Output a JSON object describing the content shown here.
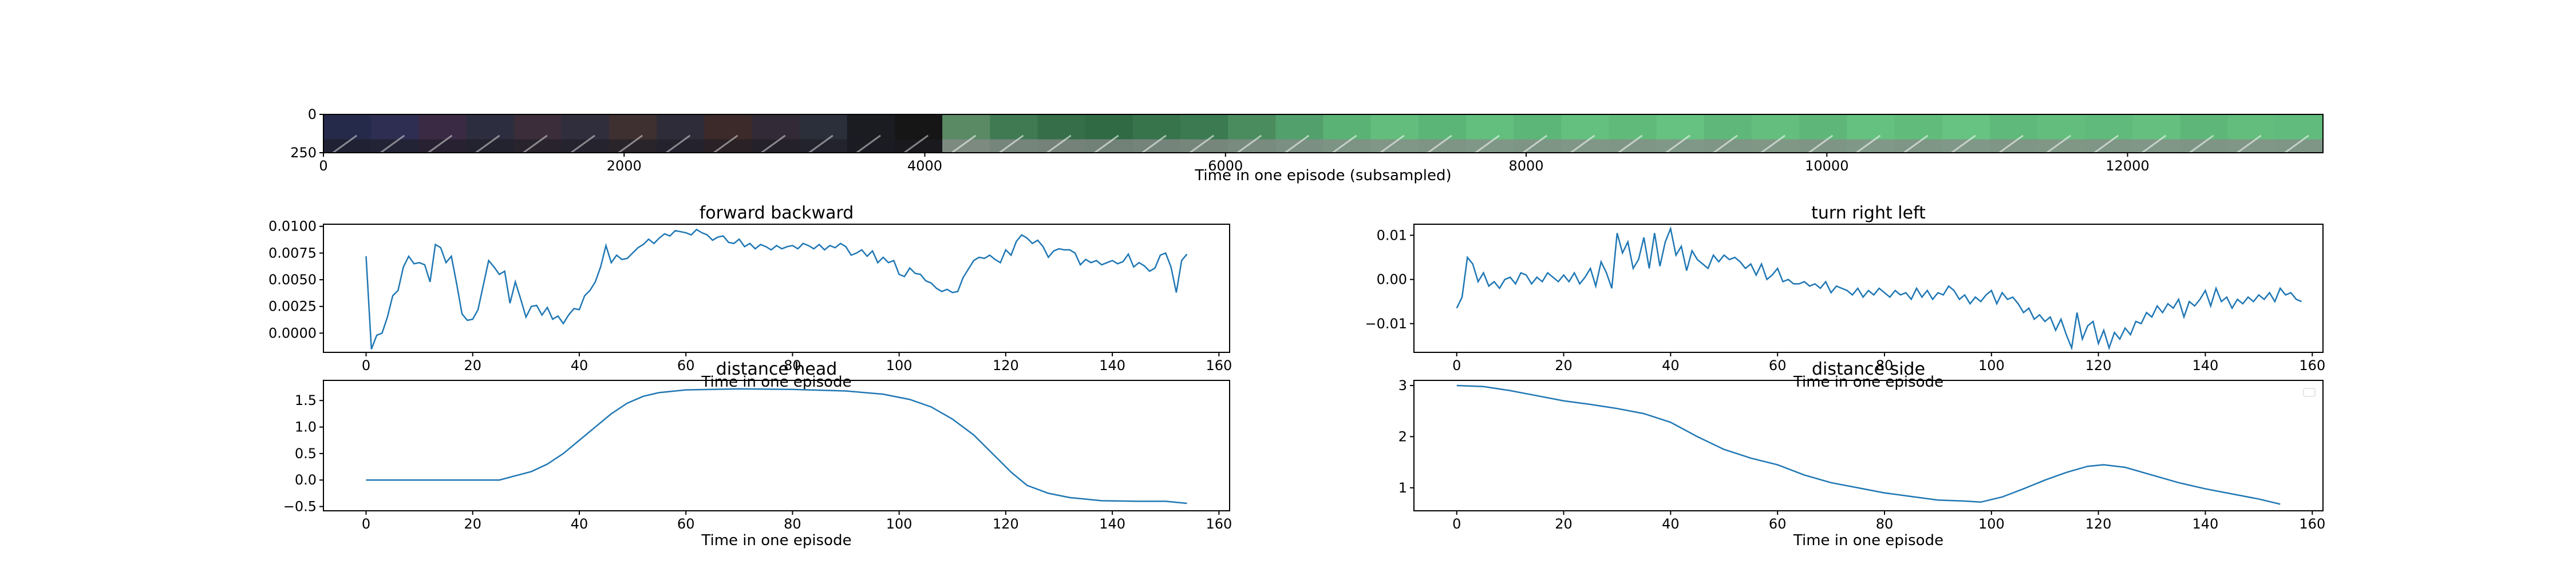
{
  "chart_data": [
    {
      "type": "image_strip",
      "xlabel": "Time in one episode (subsampled)",
      "xlim": [
        0,
        13300
      ],
      "xticks": [
        0,
        2000,
        4000,
        6000,
        8000,
        10000,
        12000
      ],
      "ylim": [
        0,
        250
      ],
      "yticks": [
        0,
        250
      ],
      "frame_colors": [
        "#262a4a",
        "#2e2d52",
        "#3a2a44",
        "#2c2d3e",
        "#3b2d3a",
        "#302e3d",
        "#3e3030",
        "#2f2c3a",
        "#3c2a2a",
        "#322a36",
        "#2b2f3a",
        "#1a1c22",
        "#161616",
        "#5a8a64",
        "#3f7a53",
        "#356e49",
        "#2f6a44",
        "#37744c",
        "#3c7b52",
        "#4a8c5e",
        "#52a06b",
        "#5ab274",
        "#63bd7c",
        "#5bb576",
        "#62bf7e",
        "#5cb677",
        "#64c07f",
        "#60bb7b",
        "#66c281",
        "#5fb87a",
        "#64bf7e",
        "#5eb779",
        "#65c180",
        "#61bc7c",
        "#66c382",
        "#5fb97a",
        "#63be7e",
        "#60ba7b",
        "#65c080",
        "#5eb779",
        "#63bd7d",
        "#61bb7c"
      ]
    },
    {
      "type": "line",
      "title": "forward backward",
      "xlabel": "Time in one episode",
      "ylabel": "",
      "xlim": [
        -8,
        162
      ],
      "ylim": [
        -0.0018,
        0.0102
      ],
      "xticks": [
        0,
        20,
        40,
        60,
        80,
        100,
        120,
        140,
        160
      ],
      "yticks": [
        0.0,
        0.0025,
        0.005,
        0.0075,
        0.01
      ],
      "ytick_labels": [
        "0.0000",
        "0.0025",
        "0.0050",
        "0.0075",
        "0.0100"
      ],
      "color": "#1f77b4",
      "y": [
        0.0072,
        -0.0015,
        -0.0002,
        0.0,
        0.0015,
        0.0035,
        0.004,
        0.0062,
        0.0072,
        0.0065,
        0.0066,
        0.0064,
        0.0048,
        0.0083,
        0.008,
        0.0066,
        0.0072,
        0.0046,
        0.0018,
        0.0012,
        0.0013,
        0.0022,
        0.0045,
        0.0068,
        0.0062,
        0.0055,
        0.0058,
        0.0028,
        0.0048,
        0.0032,
        0.0015,
        0.0025,
        0.0026,
        0.0017,
        0.0024,
        0.0013,
        0.0016,
        0.0009,
        0.0017,
        0.0023,
        0.0022,
        0.0035,
        0.004,
        0.0048,
        0.0062,
        0.0082,
        0.0066,
        0.0073,
        0.0069,
        0.007,
        0.0075,
        0.008,
        0.0083,
        0.0088,
        0.0084,
        0.0089,
        0.0093,
        0.0091,
        0.0096,
        0.0095,
        0.0094,
        0.0092,
        0.0097,
        0.0094,
        0.0092,
        0.0087,
        0.009,
        0.0091,
        0.0085,
        0.0084,
        0.0088,
        0.0081,
        0.0084,
        0.0079,
        0.0083,
        0.0081,
        0.0078,
        0.0082,
        0.0079,
        0.0081,
        0.0082,
        0.0079,
        0.0084,
        0.0082,
        0.0079,
        0.0083,
        0.0078,
        0.0082,
        0.008,
        0.0084,
        0.0081,
        0.0073,
        0.0075,
        0.0078,
        0.0072,
        0.0077,
        0.0066,
        0.0071,
        0.0066,
        0.0068,
        0.0055,
        0.0053,
        0.0061,
        0.0056,
        0.0055,
        0.0049,
        0.0047,
        0.0042,
        0.0039,
        0.0041,
        0.0038,
        0.0039,
        0.0052,
        0.006,
        0.0068,
        0.0071,
        0.007,
        0.0073,
        0.0069,
        0.0066,
        0.0078,
        0.0073,
        0.0086,
        0.0092,
        0.0089,
        0.0084,
        0.0087,
        0.0081,
        0.0071,
        0.0077,
        0.0079,
        0.0078,
        0.0078,
        0.0075,
        0.0064,
        0.0069,
        0.0066,
        0.0068,
        0.0064,
        0.0066,
        0.0068,
        0.0065,
        0.0067,
        0.0074,
        0.0062,
        0.0066,
        0.0063,
        0.0058,
        0.0061,
        0.0073,
        0.0075,
        0.0062,
        0.0038,
        0.0068,
        0.0074
      ]
    },
    {
      "type": "line",
      "title": "turn right left",
      "xlabel": "Time in one episode",
      "ylabel": "",
      "xlim": [
        -8,
        162
      ],
      "ylim": [
        -0.0165,
        0.0125
      ],
      "xticks": [
        0,
        20,
        40,
        60,
        80,
        100,
        120,
        140,
        160
      ],
      "yticks": [
        -0.01,
        0.0,
        0.01
      ],
      "ytick_labels": [
        "−0.01",
        "0.00",
        "0.01"
      ],
      "color": "#1f77b4",
      "y": [
        -0.0065,
        -0.004,
        0.005,
        0.0035,
        -0.0005,
        0.0015,
        -0.0015,
        -0.0005,
        -0.002,
        0.0,
        0.0005,
        -0.001,
        0.0015,
        0.001,
        -0.001,
        0.0005,
        -0.0005,
        0.0015,
        0.0005,
        -0.0005,
        0.001,
        -0.0005,
        0.0015,
        -0.001,
        0.0005,
        0.0025,
        -0.0015,
        0.004,
        0.0015,
        -0.002,
        0.0105,
        0.006,
        0.0085,
        0.0025,
        0.0045,
        0.0095,
        0.0025,
        0.0105,
        0.003,
        0.0085,
        0.0115,
        0.0055,
        0.0075,
        0.002,
        0.0065,
        0.0045,
        0.0035,
        0.0025,
        0.0055,
        0.004,
        0.0055,
        0.0045,
        0.005,
        0.004,
        0.0025,
        0.0035,
        0.001,
        0.0035,
        0.0,
        0.001,
        0.0025,
        -0.0005,
        0.0,
        -0.001,
        -0.001,
        -0.0005,
        -0.0015,
        -0.001,
        -0.002,
        -0.0005,
        -0.003,
        -0.0015,
        -0.002,
        -0.0025,
        -0.0035,
        -0.002,
        -0.004,
        -0.0025,
        -0.0035,
        -0.002,
        -0.003,
        -0.004,
        -0.0025,
        -0.0035,
        -0.003,
        -0.0045,
        -0.002,
        -0.004,
        -0.0025,
        -0.0045,
        -0.003,
        -0.0035,
        -0.0015,
        -0.0025,
        -0.0045,
        -0.0035,
        -0.0055,
        -0.004,
        -0.005,
        -0.0035,
        -0.0025,
        -0.0055,
        -0.003,
        -0.0045,
        -0.004,
        -0.0055,
        -0.0075,
        -0.0065,
        -0.009,
        -0.008,
        -0.0095,
        -0.0085,
        -0.0115,
        -0.009,
        -0.0125,
        -0.0155,
        -0.0075,
        -0.0135,
        -0.0105,
        -0.0095,
        -0.0145,
        -0.0115,
        -0.0155,
        -0.012,
        -0.0135,
        -0.011,
        -0.0125,
        -0.0095,
        -0.01,
        -0.0075,
        -0.0085,
        -0.006,
        -0.0075,
        -0.0055,
        -0.0065,
        -0.0045,
        -0.0085,
        -0.005,
        -0.006,
        -0.0045,
        -0.0025,
        -0.006,
        -0.002,
        -0.005,
        -0.004,
        -0.0065,
        -0.0045,
        -0.0055,
        -0.004,
        -0.005,
        -0.0035,
        -0.0045,
        -0.003,
        -0.005,
        -0.002,
        -0.0035,
        -0.003,
        -0.0045,
        -0.005
      ]
    },
    {
      "type": "line",
      "title": "distance head",
      "xlabel": "Time in one episode",
      "ylabel": "",
      "xlim": [
        -8,
        162
      ],
      "ylim": [
        -0.58,
        1.88
      ],
      "xticks": [
        0,
        20,
        40,
        60,
        80,
        100,
        120,
        140,
        160
      ],
      "yticks": [
        -0.5,
        0.0,
        0.5,
        1.0,
        1.5
      ],
      "ytick_labels": [
        "−0.5",
        "0.0",
        "0.5",
        "1.0",
        "1.5"
      ],
      "color": "#1f77b4",
      "points": [
        [
          0,
          0.0
        ],
        [
          25,
          0.0
        ],
        [
          28,
          0.08
        ],
        [
          31,
          0.16
        ],
        [
          34,
          0.3
        ],
        [
          37,
          0.5
        ],
        [
          40,
          0.75
        ],
        [
          43,
          1.0
        ],
        [
          46,
          1.25
        ],
        [
          49,
          1.45
        ],
        [
          52,
          1.58
        ],
        [
          55,
          1.65
        ],
        [
          60,
          1.7
        ],
        [
          70,
          1.72
        ],
        [
          80,
          1.71
        ],
        [
          90,
          1.68
        ],
        [
          97,
          1.62
        ],
        [
          102,
          1.52
        ],
        [
          106,
          1.38
        ],
        [
          110,
          1.15
        ],
        [
          114,
          0.85
        ],
        [
          118,
          0.45
        ],
        [
          121,
          0.15
        ],
        [
          124,
          -0.1
        ],
        [
          128,
          -0.25
        ],
        [
          132,
          -0.33
        ],
        [
          138,
          -0.39
        ],
        [
          145,
          -0.4
        ],
        [
          150,
          -0.4
        ],
        [
          154,
          -0.44
        ]
      ]
    },
    {
      "type": "line",
      "title": "distance side",
      "xlabel": "Time in one episode",
      "ylabel": "",
      "xlim": [
        -8,
        162
      ],
      "ylim": [
        0.55,
        3.1
      ],
      "xticks": [
        0,
        20,
        40,
        60,
        80,
        100,
        120,
        140,
        160
      ],
      "yticks": [
        1,
        2,
        3
      ],
      "ytick_labels": [
        "1",
        "2",
        "3"
      ],
      "color": "#1f77b4",
      "points": [
        [
          0,
          3.0
        ],
        [
          5,
          2.98
        ],
        [
          10,
          2.9
        ],
        [
          15,
          2.8
        ],
        [
          20,
          2.7
        ],
        [
          25,
          2.63
        ],
        [
          30,
          2.55
        ],
        [
          35,
          2.45
        ],
        [
          40,
          2.28
        ],
        [
          45,
          2.0
        ],
        [
          50,
          1.75
        ],
        [
          55,
          1.58
        ],
        [
          60,
          1.45
        ],
        [
          65,
          1.25
        ],
        [
          70,
          1.1
        ],
        [
          75,
          1.0
        ],
        [
          80,
          0.9
        ],
        [
          85,
          0.83
        ],
        [
          90,
          0.76
        ],
        [
          95,
          0.74
        ],
        [
          98,
          0.72
        ],
        [
          102,
          0.82
        ],
        [
          106,
          0.98
        ],
        [
          110,
          1.15
        ],
        [
          114,
          1.3
        ],
        [
          118,
          1.42
        ],
        [
          121,
          1.45
        ],
        [
          125,
          1.4
        ],
        [
          130,
          1.25
        ],
        [
          135,
          1.1
        ],
        [
          140,
          0.98
        ],
        [
          145,
          0.88
        ],
        [
          150,
          0.78
        ],
        [
          154,
          0.68
        ]
      ]
    }
  ]
}
